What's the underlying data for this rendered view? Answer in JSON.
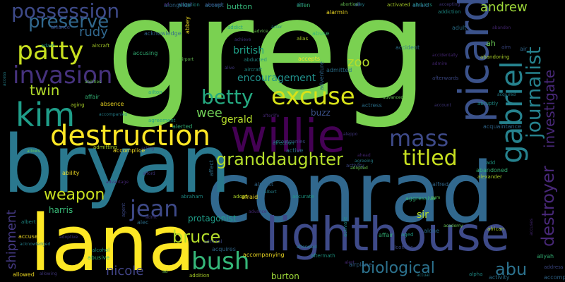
{
  "words": [
    {
      "text": "greg",
      "color": "#7ad151"
    },
    {
      "text": "conrad",
      "color": "#31688e"
    },
    {
      "text": "bryan",
      "color": "#2a788e"
    },
    {
      "text": "lana",
      "color": "#fde725"
    },
    {
      "text": "lighthouse",
      "color": "#3e4a89"
    },
    {
      "text": "willie",
      "color": "#440154"
    },
    {
      "text": "picard",
      "color": "#3b528b"
    },
    {
      "text": "destruction",
      "color": "#fde725"
    },
    {
      "text": "kim",
      "color": "#1f9e89"
    },
    {
      "text": "possession",
      "color": "#3e4a89"
    },
    {
      "text": "preserve",
      "color": "#31688e"
    },
    {
      "text": "patty",
      "color": "#c8e020"
    },
    {
      "text": "invasion",
      "color": "#46327e"
    },
    {
      "text": "excuse",
      "color": "#d8e219"
    },
    {
      "text": "betty",
      "color": "#25ab82"
    },
    {
      "text": "gabriel",
      "color": "#26828e"
    },
    {
      "text": "journalist",
      "color": "#26828e"
    },
    {
      "text": "investigate",
      "color": "#482878"
    },
    {
      "text": "destroyer",
      "color": "#482878"
    },
    {
      "text": "mass",
      "color": "#3e4a89"
    },
    {
      "text": "titled",
      "color": "#c8e020"
    },
    {
      "text": "granddaughter",
      "color": "#b5de2b"
    },
    {
      "text": "jean",
      "color": "#3e4a89"
    },
    {
      "text": "bush",
      "color": "#35b779"
    },
    {
      "text": "bruce",
      "color": "#b5de2b"
    },
    {
      "text": "weapon",
      "color": "#c8e020"
    },
    {
      "text": "biological",
      "color": "#2c728e"
    },
    {
      "text": "abu",
      "color": "#2c728e"
    },
    {
      "text": "andrew",
      "color": "#9fda3a"
    },
    {
      "text": "zoo",
      "color": "#b5de2b"
    },
    {
      "text": "twin",
      "color": "#b5de2b"
    },
    {
      "text": "rudy",
      "color": "#31688e"
    },
    {
      "text": "british",
      "color": "#1fa088"
    },
    {
      "text": "encouragement",
      "color": "#21918c"
    },
    {
      "text": "wee",
      "color": "#70cf57"
    },
    {
      "text": "gerald",
      "color": "#b5de2b"
    },
    {
      "text": "harris",
      "color": "#38b977"
    },
    {
      "text": "nicole",
      "color": "#414487"
    },
    {
      "text": "shipment",
      "color": "#443983"
    },
    {
      "text": "protagonist",
      "color": "#1f9e89"
    },
    {
      "text": "sir",
      "color": "#b5de2b"
    },
    {
      "text": "burton",
      "color": "#9fda3a"
    },
    {
      "text": "buzz",
      "color": "#3b528b"
    },
    {
      "text": "button",
      "color": "#35b779"
    },
    {
      "text": "ah",
      "color": "#6ece58"
    }
  ],
  "small_words": [
    "abigail",
    "aboard",
    "alongside",
    "ailey",
    "abducts",
    "alien",
    "abortion",
    "activated",
    "alarmin",
    "accepting",
    "addiction",
    "adult",
    "abandon",
    "alliance",
    "acknowledge",
    "actor",
    "addict",
    "abuse",
    "advice",
    "aircraft",
    "abbey",
    "achieve",
    "abducted",
    "accident",
    "accidentally",
    "aim",
    "air",
    "access",
    "adam",
    "accusing",
    "airport",
    "abandoning",
    "accepts",
    "alive",
    "aircraft",
    "admitted",
    "admire",
    "afterwards",
    "adventure",
    "acquired",
    "ailton",
    "affair",
    "advanced",
    "aging",
    "absence",
    "account",
    "abruptly",
    "actress",
    "afterlife",
    "accompanies",
    "acquaintance",
    "accompanied",
    "agreement",
    "alerted",
    "allows",
    "admitting",
    "accomplice",
    "acting",
    "affection",
    "active",
    "ahead",
    "activity",
    "alfred",
    "agreeing",
    "add",
    "abandoned",
    "adopted",
    "alexander",
    "ability",
    "afford",
    "abraham",
    "affect",
    "advantage",
    "agent",
    "almost",
    "albert",
    "accurate",
    "aggressive",
    "gym",
    "adopt",
    "afraid",
    "adrift",
    "albert",
    "alec",
    "advance",
    "admiral",
    "acquires",
    "afterward",
    "aged",
    "affair",
    "academy",
    "african",
    "accused",
    "adoptive",
    "activate",
    "alone",
    "alert",
    "alcoholic",
    "airplane",
    "actual",
    "alcohol",
    "abusive",
    "ad",
    "addition",
    "allowed",
    "allowing",
    "alpha",
    "activity",
    "accuses",
    "address",
    "accompany",
    "acknowledged",
    "aftermath",
    "aliyah",
    "abilities",
    "alias",
    "accompanying",
    "aleppo",
    "adoption",
    "accept",
    "ad",
    "all",
    "afraid",
    "aim"
  ]
}
